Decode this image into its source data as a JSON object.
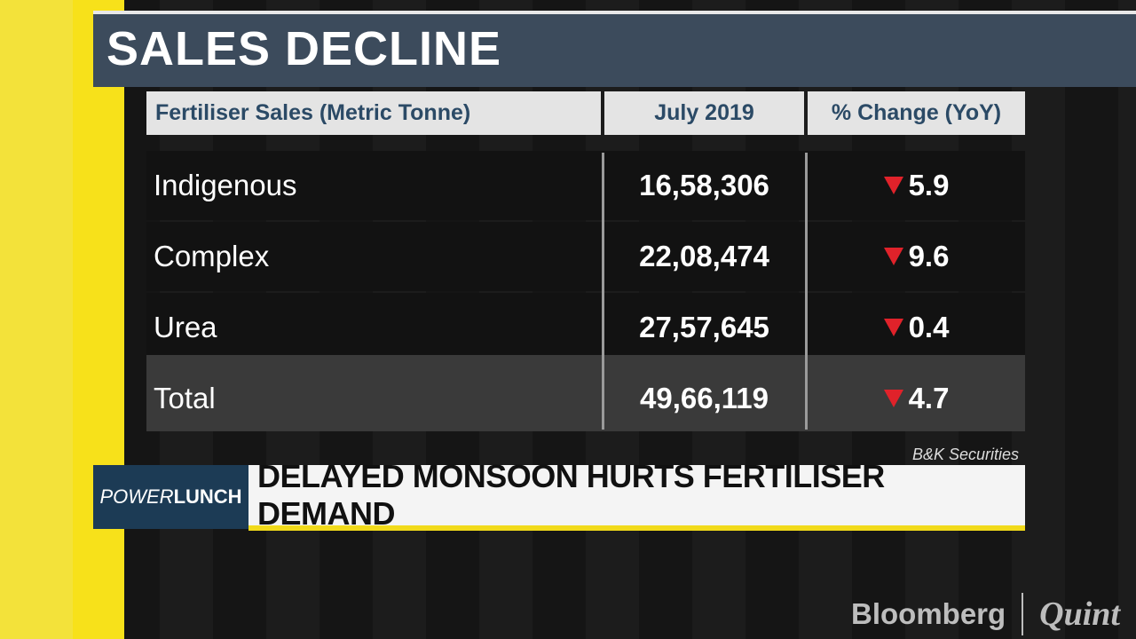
{
  "title": "SALES DECLINE",
  "table": {
    "header": [
      "Fertiliser Sales (Metric Tonne)",
      "July 2019",
      "% Change (YoY)"
    ],
    "rows": [
      [
        "Indigenous",
        "16,58,306",
        "5.9"
      ],
      [
        "Complex",
        "22,08,474",
        "9.6"
      ],
      [
        "Urea",
        "27,57,645",
        "0.4"
      ],
      [
        "Total",
        "49,66,119",
        "4.7"
      ]
    ]
  },
  "source": "B&K Securities",
  "show": {
    "part1": "POWER",
    "part2": "LUNCH"
  },
  "headline": "DELAYED MONSOON HURTS FERTILISER DEMAND",
  "logo": {
    "brand": "Bloomberg",
    "partner": "Quint"
  }
}
